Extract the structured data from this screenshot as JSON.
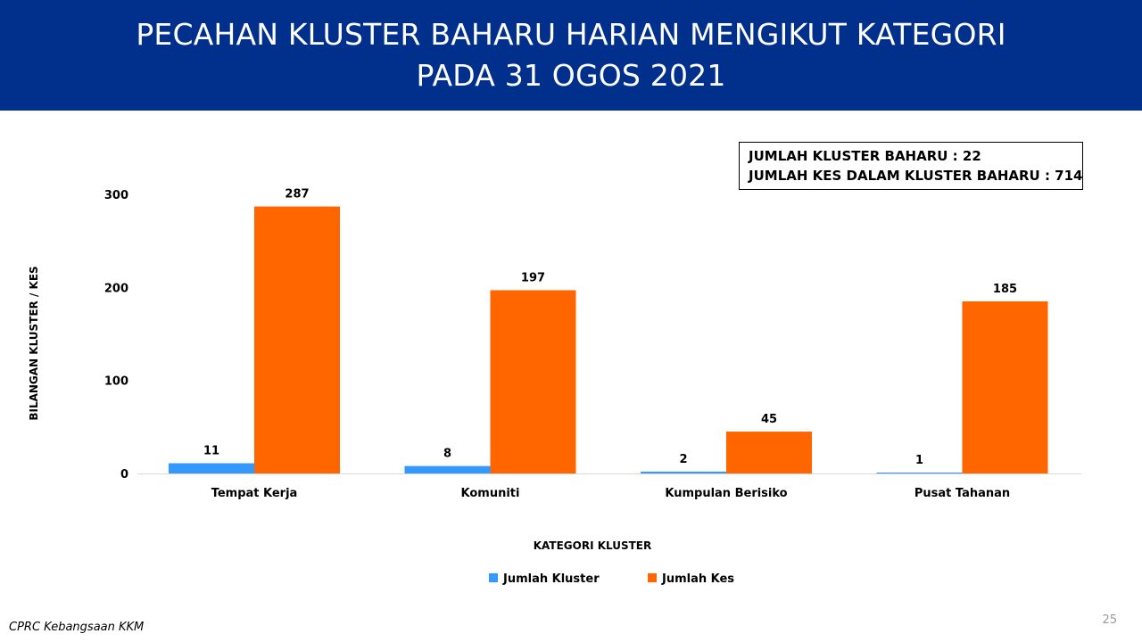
{
  "title": {
    "line1": "PECAHAN KLUSTER BAHARU HARIAN MENGIKUT KATEGORI",
    "line2": "PADA 31 OGOS 2021"
  },
  "summary": {
    "line1": "JUMLAH KLUSTER BAHARU : 22",
    "line2": "JUMLAH KES DALAM KLUSTER BAHARU : 714"
  },
  "colors": {
    "header_bg": "#00308c",
    "jumlah_kluster": "#3399ff",
    "jumlah_kes": "#ff6600"
  },
  "chart_data": {
    "type": "bar",
    "categories": [
      "Tempat Kerja",
      "Komuniti",
      "Kumpulan Berisiko",
      "Pusat Tahanan"
    ],
    "series": [
      {
        "name": "Jumlah Kluster",
        "values": [
          11,
          8,
          2,
          1
        ]
      },
      {
        "name": "Jumlah Kes",
        "values": [
          287,
          197,
          45,
          185
        ]
      }
    ],
    "xlabel": "KATEGORI KLUSTER",
    "ylabel": "BILANGAN KLUSTER / KES",
    "ylim": [
      0,
      300
    ],
    "yticks": [
      0,
      100,
      200,
      300
    ],
    "grid": false,
    "legend": "bottom-center",
    "data_labels": true
  },
  "footer": {
    "source": "CPRC Kebangsaan KKM",
    "page_number": "25"
  }
}
